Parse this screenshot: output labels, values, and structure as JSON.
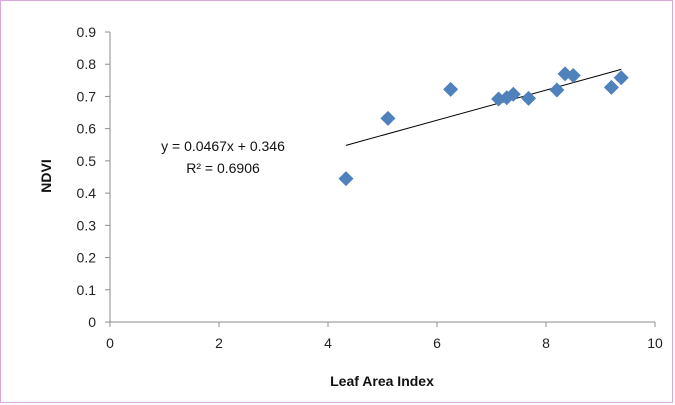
{
  "chart_data": {
    "type": "scatter",
    "xlabel": "Leaf Area Index",
    "ylabel": "NDVI",
    "xlim": [
      0,
      10
    ],
    "ylim": [
      0,
      0.9
    ],
    "x_ticks": [
      "0",
      "2",
      "4",
      "6",
      "8",
      "10"
    ],
    "y_ticks": [
      "0",
      "0.1",
      "0.2",
      "0.3",
      "0.4",
      "0.5",
      "0.6",
      "0.7",
      "0.8",
      "0.9"
    ],
    "grid": false,
    "legend": "none",
    "series": [
      {
        "marker": "diamond",
        "color": "#4f81bd",
        "points": [
          {
            "x": 4.33,
            "y": 0.445
          },
          {
            "x": 5.1,
            "y": 0.632
          },
          {
            "x": 6.25,
            "y": 0.722
          },
          {
            "x": 7.13,
            "y": 0.692
          },
          {
            "x": 7.28,
            "y": 0.696
          },
          {
            "x": 7.4,
            "y": 0.707
          },
          {
            "x": 7.68,
            "y": 0.694
          },
          {
            "x": 8.2,
            "y": 0.72
          },
          {
            "x": 8.35,
            "y": 0.77
          },
          {
            "x": 8.5,
            "y": 0.765
          },
          {
            "x": 9.2,
            "y": 0.728
          },
          {
            "x": 9.38,
            "y": 0.758
          }
        ]
      }
    ],
    "trendline": {
      "slope": 0.0467,
      "intercept": 0.346,
      "x_range": [
        4.33,
        9.38
      ],
      "color": "#000000",
      "equation": "y = 0.0467x + 0.346",
      "r_squared": "R² = 0.6906"
    }
  }
}
